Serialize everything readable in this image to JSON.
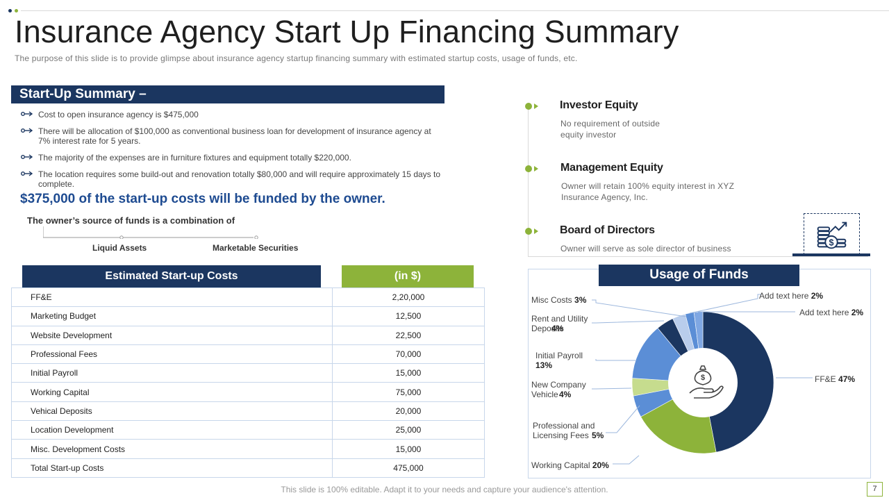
{
  "colors": {
    "navy": "#1b3660",
    "green": "#8db33a",
    "blue": "#1e4b91",
    "mid_blue": "#5b8ed6",
    "light_blue": "#b9cdec"
  },
  "header": {
    "title": "Insurance Agency Start Up Financing Summary",
    "subtitle": "The purpose of this slide is to provide glimpse about insurance agency startup financing summary with estimated startup costs, usage of funds, etc."
  },
  "summary": {
    "heading": "Start-Up Summary –",
    "bullets": [
      "Cost to open insurance agency is $475,000",
      "There will be allocation of $100,000 as conventional business loan for development of insurance agency at 7% interest rate for 5 years.",
      "The majority of the expenses are in furniture fixtures and equipment totally $220,000.",
      "The location requires some build-out and renovation totally $80,000 and will require approximately 15 days to complete."
    ],
    "funded_statement": "$375,000 of the start-up costs will be funded by the owner.",
    "owner_source": "The owner’s source of funds is a combination of",
    "sources": [
      "Liquid Assets",
      "Marketable Securities"
    ]
  },
  "costs": {
    "header_name": "Estimated Start-up Costs",
    "header_value": "(in $)",
    "rows": [
      {
        "name": "FF&E",
        "value": "2,20,000"
      },
      {
        "name": "Marketing Budget",
        "value": "12,500"
      },
      {
        "name": "Website Development",
        "value": "22,500"
      },
      {
        "name": "Professional Fees",
        "value": "70,000"
      },
      {
        "name": "Initial Payroll",
        "value": "15,000"
      },
      {
        "name": "Working Capital",
        "value": "75,000"
      },
      {
        "name": "Vehical Deposits",
        "value": "20,000"
      },
      {
        "name": "Location Development",
        "value": "25,000"
      },
      {
        "name": "Misc. Development Costs",
        "value": "15,000"
      },
      {
        "name": "Total Start-up Costs",
        "value": "475,000"
      }
    ]
  },
  "equity": [
    {
      "title": "Investor Equity",
      "text": "No requirement of outside equity investor"
    },
    {
      "title": "Management Equity",
      "text": "Owner will retain 100% equity interest in XYZ Insurance Agency, Inc."
    },
    {
      "title": "Board of Directors",
      "text": "Owner will serve as sole director of business"
    }
  ],
  "funds": {
    "heading": "Usage of Funds",
    "labels": {
      "misc": {
        "name": "Misc Costs",
        "pct": "3%"
      },
      "rent": {
        "name": "Rent and Utility Deposits",
        "pct": "4%"
      },
      "payroll": {
        "name": "Initial Payroll",
        "pct": "13%"
      },
      "vehicle": {
        "name": "New Company Vehicle",
        "pct": "4%"
      },
      "prof": {
        "name": "Professional and Licensing Fees",
        "pct": "5%"
      },
      "wc": {
        "name": "Working Capital",
        "pct": "20%"
      },
      "ffe": {
        "name": "FF&E",
        "pct": "47%"
      },
      "add1": {
        "name": "Add text here",
        "pct": "2%"
      },
      "add2": {
        "name": "Add text here",
        "pct": "2%"
      }
    }
  },
  "chart_data": {
    "type": "pie",
    "donut": true,
    "title": "Usage of Funds",
    "slices": [
      {
        "label": "FF&E",
        "value": 47,
        "color": "#1b3660"
      },
      {
        "label": "Working Capital",
        "value": 20,
        "color": "#8db33a"
      },
      {
        "label": "Professional and Licensing Fees",
        "value": 5,
        "color": "#5b8ed6"
      },
      {
        "label": "New Company Vehicle",
        "value": 4,
        "color": "#c6dc8e"
      },
      {
        "label": "Initial Payroll",
        "value": 13,
        "color": "#5b8ed6"
      },
      {
        "label": "Rent and Utility Deposits",
        "value": 4,
        "color": "#1b3660"
      },
      {
        "label": "Misc Costs",
        "value": 3,
        "color": "#b9cdec"
      },
      {
        "label": "Add text here",
        "value": 2,
        "color": "#5b8ed6"
      },
      {
        "label": "Add text here",
        "value": 2,
        "color": "#7fa7e3"
      }
    ]
  },
  "footer": {
    "note": "This slide is 100% editable. Adapt it to your needs and capture your audience's attention.",
    "page": "7"
  }
}
